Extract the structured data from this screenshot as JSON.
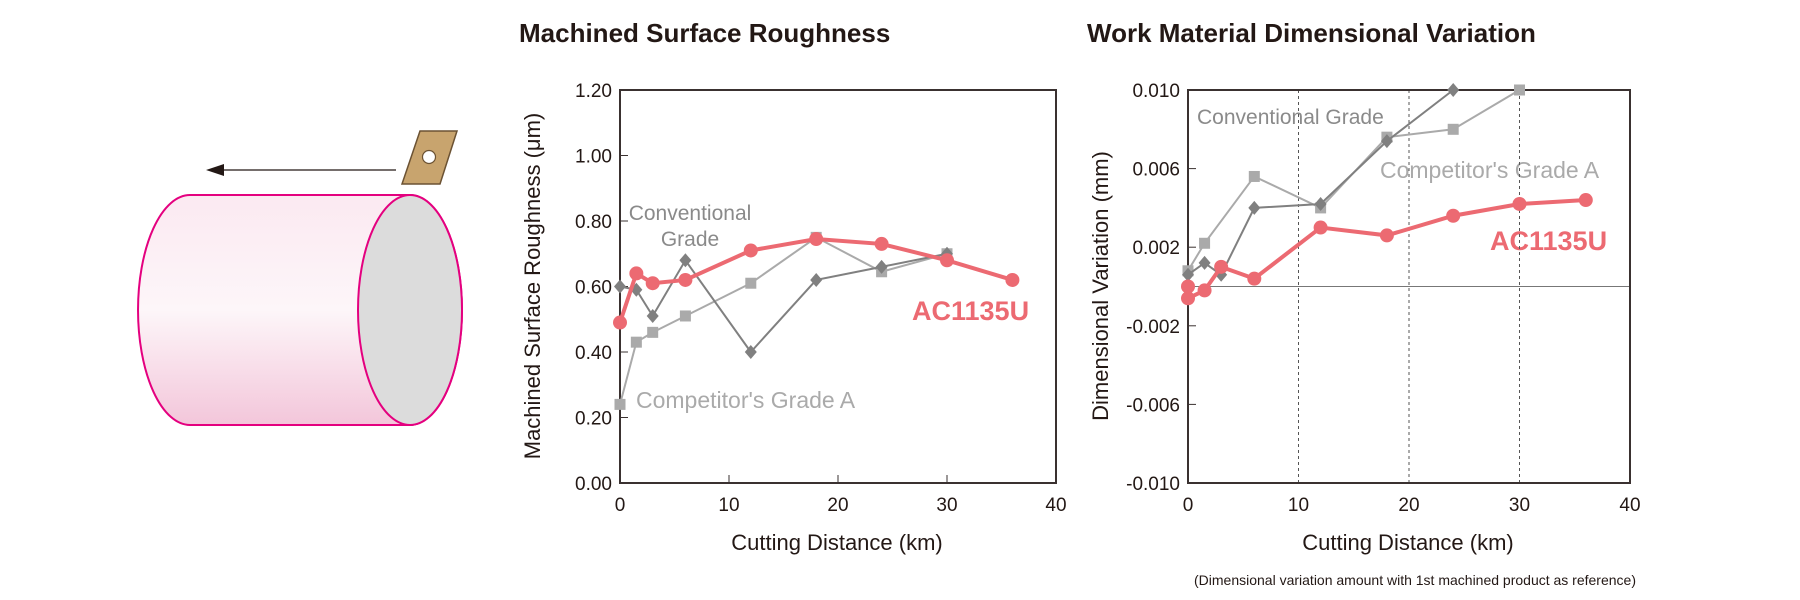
{
  "colors": {
    "ac1135u": "#ec6a72",
    "conventional": "#808080",
    "competitor": "#aaaaaa",
    "cylinder_edge": "#e4007f"
  },
  "illustration": {
    "icons": [
      "cylinder-workpiece",
      "cutting-insert-icon",
      "feed-arrow-icon"
    ]
  },
  "chart_data": [
    {
      "type": "line",
      "title": "Machined Surface Roughness",
      "xlabel": "Cutting Distance (km)",
      "ylabel": "Machined Surface Roughness (μm)",
      "xlim": [
        0,
        40
      ],
      "ylim": [
        0,
        1.2
      ],
      "xticks": [
        "0",
        "10",
        "20",
        "30",
        "40"
      ],
      "yticks": [
        "0.00",
        "0.20",
        "0.40",
        "0.60",
        "0.80",
        "1.00",
        "1.20"
      ],
      "grid": false,
      "labels": {
        "conventional": [
          "Conventional",
          "Grade"
        ],
        "competitor": "Competitor's Grade A",
        "ac1135u": "AC1135U"
      },
      "series": [
        {
          "name": "Competitor's Grade A",
          "marker": "square",
          "x": [
            0,
            1.5,
            3,
            6,
            12,
            18,
            24,
            30
          ],
          "y": [
            0.24,
            0.43,
            0.46,
            0.51,
            0.61,
            0.75,
            0.645,
            0.7
          ]
        },
        {
          "name": "Conventional Grade",
          "marker": "diamond",
          "x": [
            0,
            1.5,
            3,
            6,
            12,
            18,
            24,
            30
          ],
          "y": [
            0.6,
            0.59,
            0.51,
            0.68,
            0.4,
            0.62,
            0.66,
            0.7
          ]
        },
        {
          "name": "AC1135U",
          "marker": "circle",
          "x": [
            0,
            1.5,
            3,
            6,
            12,
            18,
            24,
            30,
            36
          ],
          "y": [
            0.49,
            0.64,
            0.61,
            0.62,
            0.71,
            0.745,
            0.73,
            0.68,
            0.62
          ]
        }
      ]
    },
    {
      "type": "line",
      "title": "Work Material Dimensional Variation",
      "xlabel": "Cutting Distance (km)",
      "ylabel": "Dimensional Variation (mm)",
      "note": "(Dimensional variation amount with 1st machined product as reference)",
      "xlim": [
        0,
        40
      ],
      "ylim": [
        -0.01,
        0.01
      ],
      "xticks": [
        "0",
        "10",
        "20",
        "30",
        "40"
      ],
      "yticks": [
        "-0.010",
        "-0.006",
        "-0.002",
        "0.002",
        "0.006",
        "0.010"
      ],
      "grid": "dashed vertical at 10, 20, 30; zero line",
      "labels": {
        "conventional": "Conventional Grade",
        "competitor": "Competitor's Grade A",
        "ac1135u": "AC1135U"
      },
      "series": [
        {
          "name": "Competitor's Grade A",
          "marker": "square",
          "x": [
            0,
            1.5,
            6,
            12,
            18,
            24,
            30
          ],
          "y": [
            0.0008,
            0.0022,
            0.0056,
            0.004,
            0.0076,
            0.008,
            0.01
          ]
        },
        {
          "name": "Conventional Grade",
          "marker": "diamond",
          "x": [
            0,
            1.5,
            3,
            6,
            12,
            18,
            24
          ],
          "y": [
            0.0006,
            0.0012,
            0.0006,
            0.004,
            0.0042,
            0.0074,
            0.01
          ]
        },
        {
          "name": "AC1135U",
          "marker": "circle",
          "x": [
            0,
            0,
            1.5,
            3,
            6,
            12,
            18,
            24,
            30,
            36
          ],
          "y": [
            0.0,
            -0.0006,
            -0.0002,
            0.001,
            0.0004,
            0.003,
            0.0026,
            0.0036,
            0.0042,
            0.0044
          ]
        }
      ]
    }
  ]
}
